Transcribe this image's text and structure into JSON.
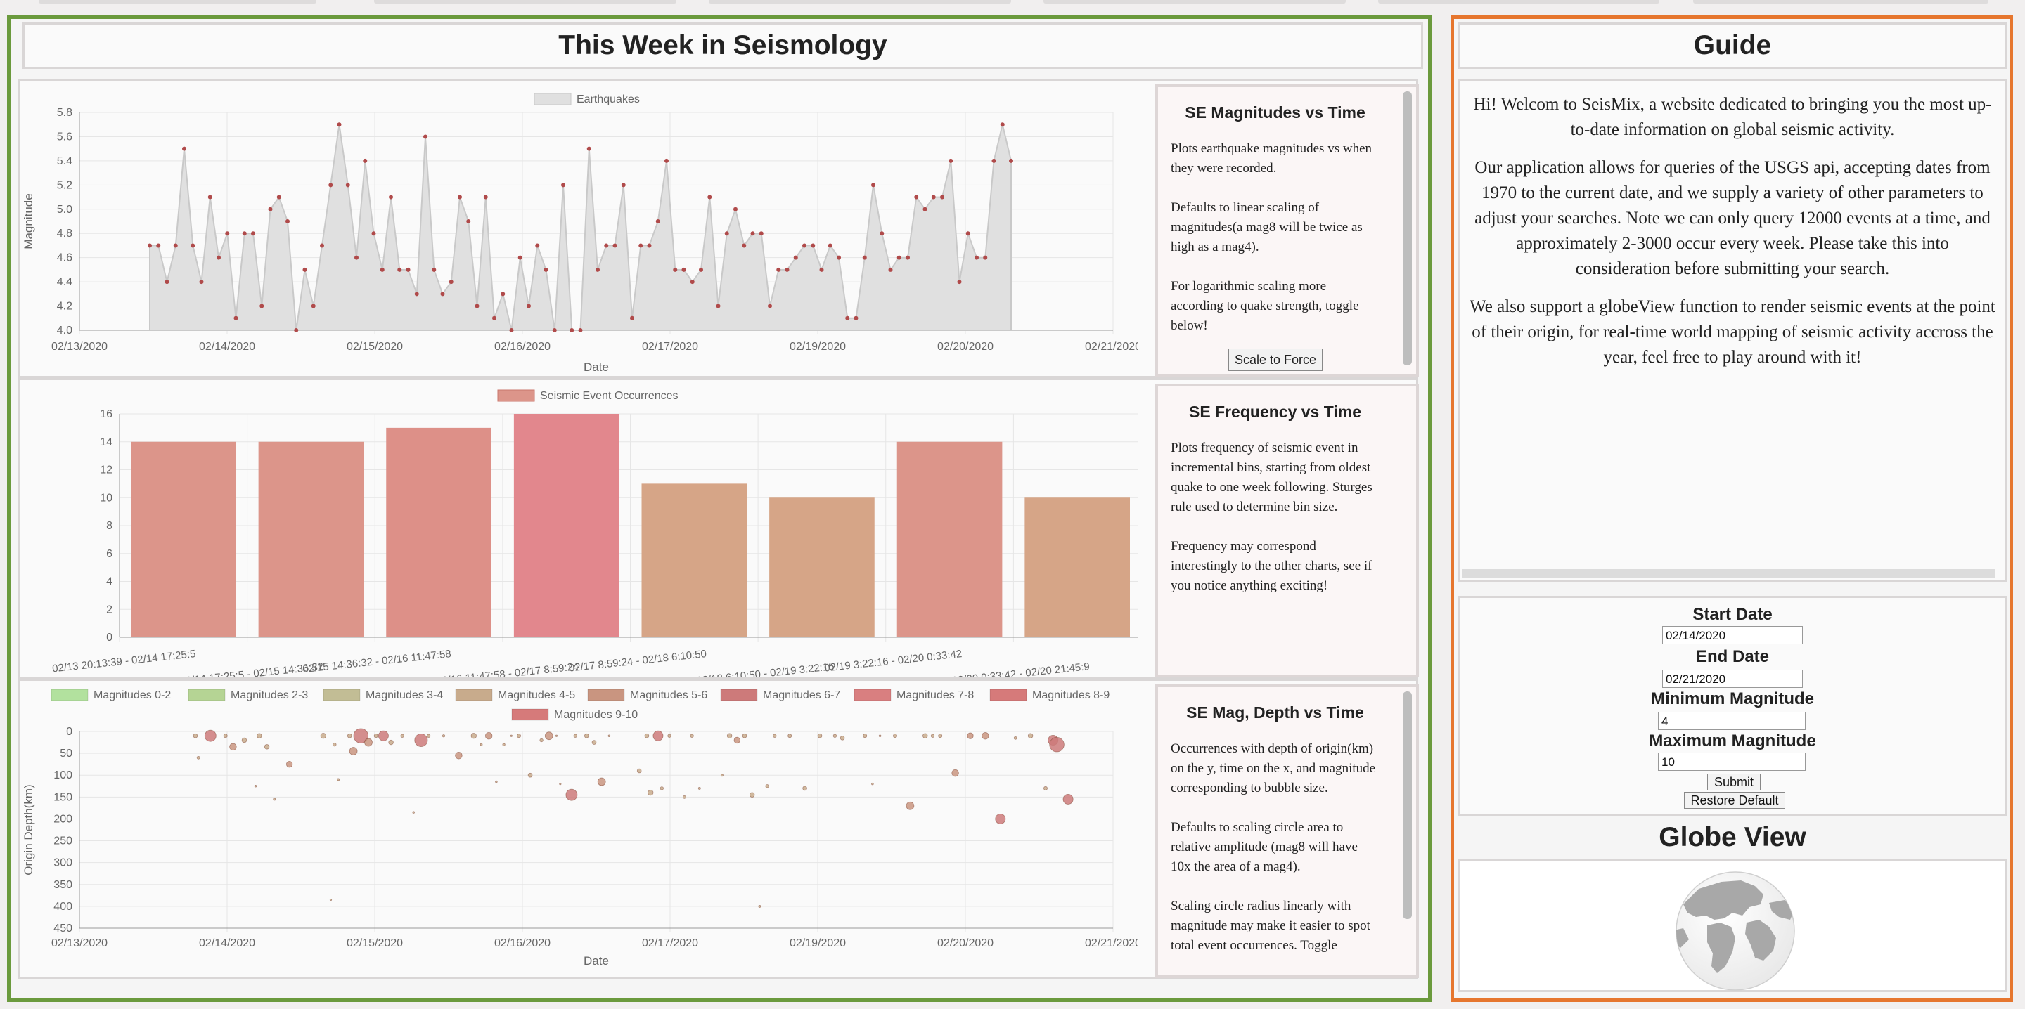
{
  "left": {
    "title": "This Week in Seismology"
  },
  "chart1": {
    "desc_title": "SE Magnitudes vs Time",
    "paragraphs": [
      "Plots earthquake magnitudes vs when they were recorded.",
      "Defaults to linear scaling of magnitudes(a mag8 will be twice as high as a mag4).",
      "For logarithmic scaling more according to quake strength, toggle below!"
    ],
    "button": "Scale to Force"
  },
  "chart2": {
    "desc_title": "SE Frequency vs Time",
    "paragraphs": [
      "Plots frequency of seismic event in incremental bins, starting from oldest quake to one week following. Sturges rule used to determine bin size.",
      "Frequency may correspond interestingly to the other charts, see if you notice anything exciting!"
    ]
  },
  "chart3": {
    "desc_title": "SE Mag, Depth vs Time",
    "paragraphs": [
      "Occurrences with depth of origin(km) on the y, time on the x, and magnitude corresponding to bubble size.",
      "Defaults to scaling circle area to relative amplitude (mag8 will have 10x the area of a mag4).",
      "Scaling circle radius linearly with magnitude may make it easier to spot total event occurrences. Toggle"
    ]
  },
  "guide": {
    "title": "Guide",
    "paragraphs": [
      "Hi! Welcom to SeisMix, a website dedicated to bringing you the most up-to-date information on global seismic activity.",
      "Our application allows for queries of the USGS api, accepting dates from 1970 to the current date, and we supply a variety of other parameters to adjust your searches. Note we can only query 12000 events at a time, and approximately 2-3000 occur every week. Please take this into consideration before submitting your search.",
      "We also support a globeView function to render seismic events at the point of their origin, for real-time world mapping of seismic activity accross the year, feel free to play around with it!"
    ]
  },
  "form": {
    "start_label": "Start Date",
    "start_value": "02/14/2020",
    "end_label": "End Date",
    "end_value": "02/21/2020",
    "min_label": "Minimum Magnitude",
    "min_value": "4",
    "max_label": "Maximum Magnitude",
    "max_value": "10",
    "submit": "Submit",
    "restore": "Restore Default"
  },
  "globe": {
    "title": "Globe View"
  },
  "colors": {
    "left_border": "#6b9a3d",
    "right_border": "#e6762e",
    "line_point": "#b04a4a",
    "line_fill": "#e0e0e0"
  },
  "chart_data": [
    {
      "type": "line",
      "legend": "Earthquakes",
      "xlabel": "Date",
      "ylabel": "Magnitude",
      "x_tick_labels": [
        "02/13/2020",
        "02/14/2020",
        "02/15/2020",
        "02/16/2020",
        "02/17/2020",
        "02/19/2020",
        "02/20/2020",
        "02/21/2020"
      ],
      "y_ticks": [
        "5.8",
        "5.6",
        "5.4",
        "5.2",
        "5.0",
        "4.8",
        "4.6",
        "4.4",
        "4.2",
        "4.0"
      ],
      "ylim": [
        4.0,
        5.8
      ],
      "values": [
        4.7,
        4.7,
        4.4,
        4.7,
        5.5,
        4.7,
        4.4,
        5.1,
        4.6,
        4.8,
        4.1,
        4.8,
        4.8,
        4.2,
        5.0,
        5.1,
        4.9,
        4.0,
        4.5,
        4.2,
        4.7,
        5.2,
        5.7,
        5.2,
        4.6,
        5.4,
        4.8,
        4.5,
        5.1,
        4.5,
        4.5,
        4.3,
        5.6,
        4.5,
        4.3,
        4.4,
        5.1,
        4.9,
        4.2,
        5.1,
        4.1,
        4.3,
        4.0,
        4.6,
        4.2,
        4.7,
        4.5,
        4.0,
        5.2,
        4.0,
        4.0,
        5.5,
        4.5,
        4.7,
        4.7,
        5.2,
        4.1,
        4.7,
        4.7,
        4.9,
        5.4,
        4.5,
        4.5,
        4.4,
        4.5,
        5.1,
        4.2,
        4.8,
        5.0,
        4.7,
        4.8,
        4.8,
        4.2,
        4.5,
        4.5,
        4.6,
        4.7,
        4.7,
        4.5,
        4.7,
        4.6,
        4.1,
        4.1,
        4.6,
        5.2,
        4.8,
        4.5,
        4.6,
        4.6,
        5.1,
        5.0,
        5.1,
        5.1,
        5.4,
        4.4,
        4.8,
        4.6,
        4.6,
        5.4,
        5.7,
        5.4
      ]
    },
    {
      "type": "bar",
      "legend": "Seismic Event Occurrences",
      "categories": [
        "02/13 20:13:39 - 02/14 17:25:5",
        "02/14 17:25:5 - 02/15 14:36:32",
        "02/15 14:36:32 - 02/16 11:47:58",
        "02/16 11:47:58 - 02/17 8:59:24",
        "02/17 8:59:24 - 02/18 6:10:50",
        "02/18 6:10:50 - 02/19 3:22:16",
        "02/19 3:22:16 - 02/20 0:33:42",
        "02/20 0:33:42 - 02/20 21:45:9"
      ],
      "values": [
        14,
        14,
        15,
        16,
        11,
        10,
        14,
        10
      ],
      "y_ticks": [
        "16",
        "14",
        "12",
        "10",
        "8",
        "6",
        "4",
        "2",
        "0"
      ],
      "ylim": [
        0,
        16
      ],
      "bar_colors": [
        "#dc958a",
        "#dc958a",
        "#dd9088",
        "#e2878d",
        "#d6a587",
        "#d6a587",
        "#dc958a",
        "#d6a587"
      ]
    },
    {
      "type": "scatter",
      "legend": [
        "Magnitudes 0-2",
        "Magnitudes 2-3",
        "Magnitudes 3-4",
        "Magnitudes 4-5",
        "Magnitudes 5-6",
        "Magnitudes 6-7",
        "Magnitudes 7-8",
        "Magnitudes 8-9",
        "Magnitudes 9-10"
      ],
      "legend_colors": [
        "#b2e19e",
        "#b5d494",
        "#c2bd95",
        "#c8ab8c",
        "#c99580",
        "#cd7a7a",
        "#d97f80",
        "#d67a7a",
        "#d67a7a"
      ],
      "xlabel": "Date",
      "ylabel": "Origin Depth(km)",
      "x_tick_labels": [
        "02/13/2020",
        "02/14/2020",
        "02/15/2020",
        "02/16/2020",
        "02/17/2020",
        "02/19/2020",
        "02/20/2020",
        "02/21/2020"
      ],
      "y_ticks": [
        "0",
        "50",
        "100",
        "150",
        "200",
        "250",
        "300",
        "350",
        "400",
        "450"
      ],
      "ylim": [
        0,
        450
      ],
      "points": [
        {
          "t": 0.07,
          "d": 10,
          "m": 4.7
        },
        {
          "t": 0.074,
          "d": 60,
          "m": 4.4
        },
        {
          "t": 0.09,
          "d": 10,
          "m": 5.5
        },
        {
          "t": 0.11,
          "d": 10,
          "m": 4.6
        },
        {
          "t": 0.12,
          "d": 35,
          "m": 5.1
        },
        {
          "t": 0.135,
          "d": 20,
          "m": 4.8
        },
        {
          "t": 0.15,
          "d": 125,
          "m": 4.1
        },
        {
          "t": 0.155,
          "d": 10,
          "m": 4.8
        },
        {
          "t": 0.165,
          "d": 35,
          "m": 4.8
        },
        {
          "t": 0.175,
          "d": 155,
          "m": 4.2
        },
        {
          "t": 0.195,
          "d": 75,
          "m": 5.0
        },
        {
          "t": 0.24,
          "d": 10,
          "m": 4.9
        },
        {
          "t": 0.25,
          "d": 385,
          "m": 4.0
        },
        {
          "t": 0.255,
          "d": 30,
          "m": 4.5
        },
        {
          "t": 0.26,
          "d": 110,
          "m": 4.2
        },
        {
          "t": 0.275,
          "d": 10,
          "m": 4.7
        },
        {
          "t": 0.28,
          "d": 45,
          "m": 5.2
        },
        {
          "t": 0.29,
          "d": 10,
          "m": 5.7
        },
        {
          "t": 0.3,
          "d": 25,
          "m": 5.2
        },
        {
          "t": 0.31,
          "d": 10,
          "m": 4.6
        },
        {
          "t": 0.32,
          "d": 10,
          "m": 5.4
        },
        {
          "t": 0.33,
          "d": 25,
          "m": 4.8
        },
        {
          "t": 0.345,
          "d": 10,
          "m": 4.5
        },
        {
          "t": 0.36,
          "d": 185,
          "m": 4.1
        },
        {
          "t": 0.37,
          "d": 20,
          "m": 5.6
        },
        {
          "t": 0.38,
          "d": 10,
          "m": 4.5
        },
        {
          "t": 0.4,
          "d": 10,
          "m": 4.3
        },
        {
          "t": 0.42,
          "d": 55,
          "m": 5.1
        },
        {
          "t": 0.44,
          "d": 10,
          "m": 4.9
        },
        {
          "t": 0.45,
          "d": 30,
          "m": 4.2
        },
        {
          "t": 0.46,
          "d": 10,
          "m": 5.1
        },
        {
          "t": 0.47,
          "d": 115,
          "m": 4.1
        },
        {
          "t": 0.48,
          "d": 30,
          "m": 4.3
        },
        {
          "t": 0.49,
          "d": 10,
          "m": 4.0
        },
        {
          "t": 0.5,
          "d": 10,
          "m": 4.6
        },
        {
          "t": 0.515,
          "d": 100,
          "m": 4.7
        },
        {
          "t": 0.53,
          "d": 20,
          "m": 4.5
        },
        {
          "t": 0.54,
          "d": 10,
          "m": 5.2
        },
        {
          "t": 0.55,
          "d": 10,
          "m": 4.0
        },
        {
          "t": 0.555,
          "d": 120,
          "m": 4.0
        },
        {
          "t": 0.57,
          "d": 145,
          "m": 5.5
        },
        {
          "t": 0.575,
          "d": 10,
          "m": 4.5
        },
        {
          "t": 0.59,
          "d": 10,
          "m": 4.7
        },
        {
          "t": 0.6,
          "d": 25,
          "m": 4.7
        },
        {
          "t": 0.61,
          "d": 115,
          "m": 5.2
        },
        {
          "t": 0.62,
          "d": 10,
          "m": 4.1
        },
        {
          "t": 0.66,
          "d": 90,
          "m": 4.7
        },
        {
          "t": 0.67,
          "d": 10,
          "m": 4.7
        },
        {
          "t": 0.675,
          "d": 140,
          "m": 4.9
        },
        {
          "t": 0.685,
          "d": 10,
          "m": 5.4
        },
        {
          "t": 0.69,
          "d": 130,
          "m": 4.5
        },
        {
          "t": 0.7,
          "d": 10,
          "m": 4.5
        },
        {
          "t": 0.72,
          "d": 150,
          "m": 4.4
        },
        {
          "t": 0.73,
          "d": 10,
          "m": 4.5
        },
        {
          "t": 0.74,
          "d": 130,
          "m": 4.2
        },
        {
          "t": 0.77,
          "d": 100,
          "m": 4.2
        },
        {
          "t": 0.78,
          "d": 10,
          "m": 4.8
        },
        {
          "t": 0.79,
          "d": 20,
          "m": 5.0
        },
        {
          "t": 0.8,
          "d": 10,
          "m": 4.7
        },
        {
          "t": 0.81,
          "d": 145,
          "m": 4.8
        },
        {
          "t": 0.82,
          "d": 400,
          "m": 4.2
        },
        {
          "t": 0.83,
          "d": 125,
          "m": 4.5
        },
        {
          "t": 0.84,
          "d": 10,
          "m": 4.5
        },
        {
          "t": 0.86,
          "d": 10,
          "m": 4.6
        },
        {
          "t": 0.88,
          "d": 130,
          "m": 4.7
        },
        {
          "t": 0.9,
          "d": 10,
          "m": 4.7
        },
        {
          "t": 0.92,
          "d": 10,
          "m": 4.5
        },
        {
          "t": 0.93,
          "d": 15,
          "m": 4.7
        },
        {
          "t": 0.96,
          "d": 10,
          "m": 4.6
        },
        {
          "t": 0.97,
          "d": 120,
          "m": 4.1
        },
        {
          "t": 0.98,
          "d": 10,
          "m": 4.1
        },
        {
          "t": 1.0,
          "d": 10,
          "m": 4.6
        },
        {
          "t": 1.02,
          "d": 170,
          "m": 5.2
        },
        {
          "t": 1.04,
          "d": 10,
          "m": 4.8
        },
        {
          "t": 1.05,
          "d": 10,
          "m": 4.5
        },
        {
          "t": 1.06,
          "d": 10,
          "m": 4.6
        },
        {
          "t": 1.08,
          "d": 95,
          "m": 5.1
        },
        {
          "t": 1.1,
          "d": 10,
          "m": 5.0
        },
        {
          "t": 1.12,
          "d": 10,
          "m": 5.1
        },
        {
          "t": 1.14,
          "d": 200,
          "m": 5.4
        },
        {
          "t": 1.16,
          "d": 15,
          "m": 4.4
        },
        {
          "t": 1.18,
          "d": 10,
          "m": 4.8
        },
        {
          "t": 1.2,
          "d": 130,
          "m": 4.6
        },
        {
          "t": 1.21,
          "d": 20,
          "m": 5.4
        },
        {
          "t": 1.215,
          "d": 30,
          "m": 5.7
        },
        {
          "t": 1.23,
          "d": 155,
          "m": 5.4
        }
      ]
    }
  ]
}
